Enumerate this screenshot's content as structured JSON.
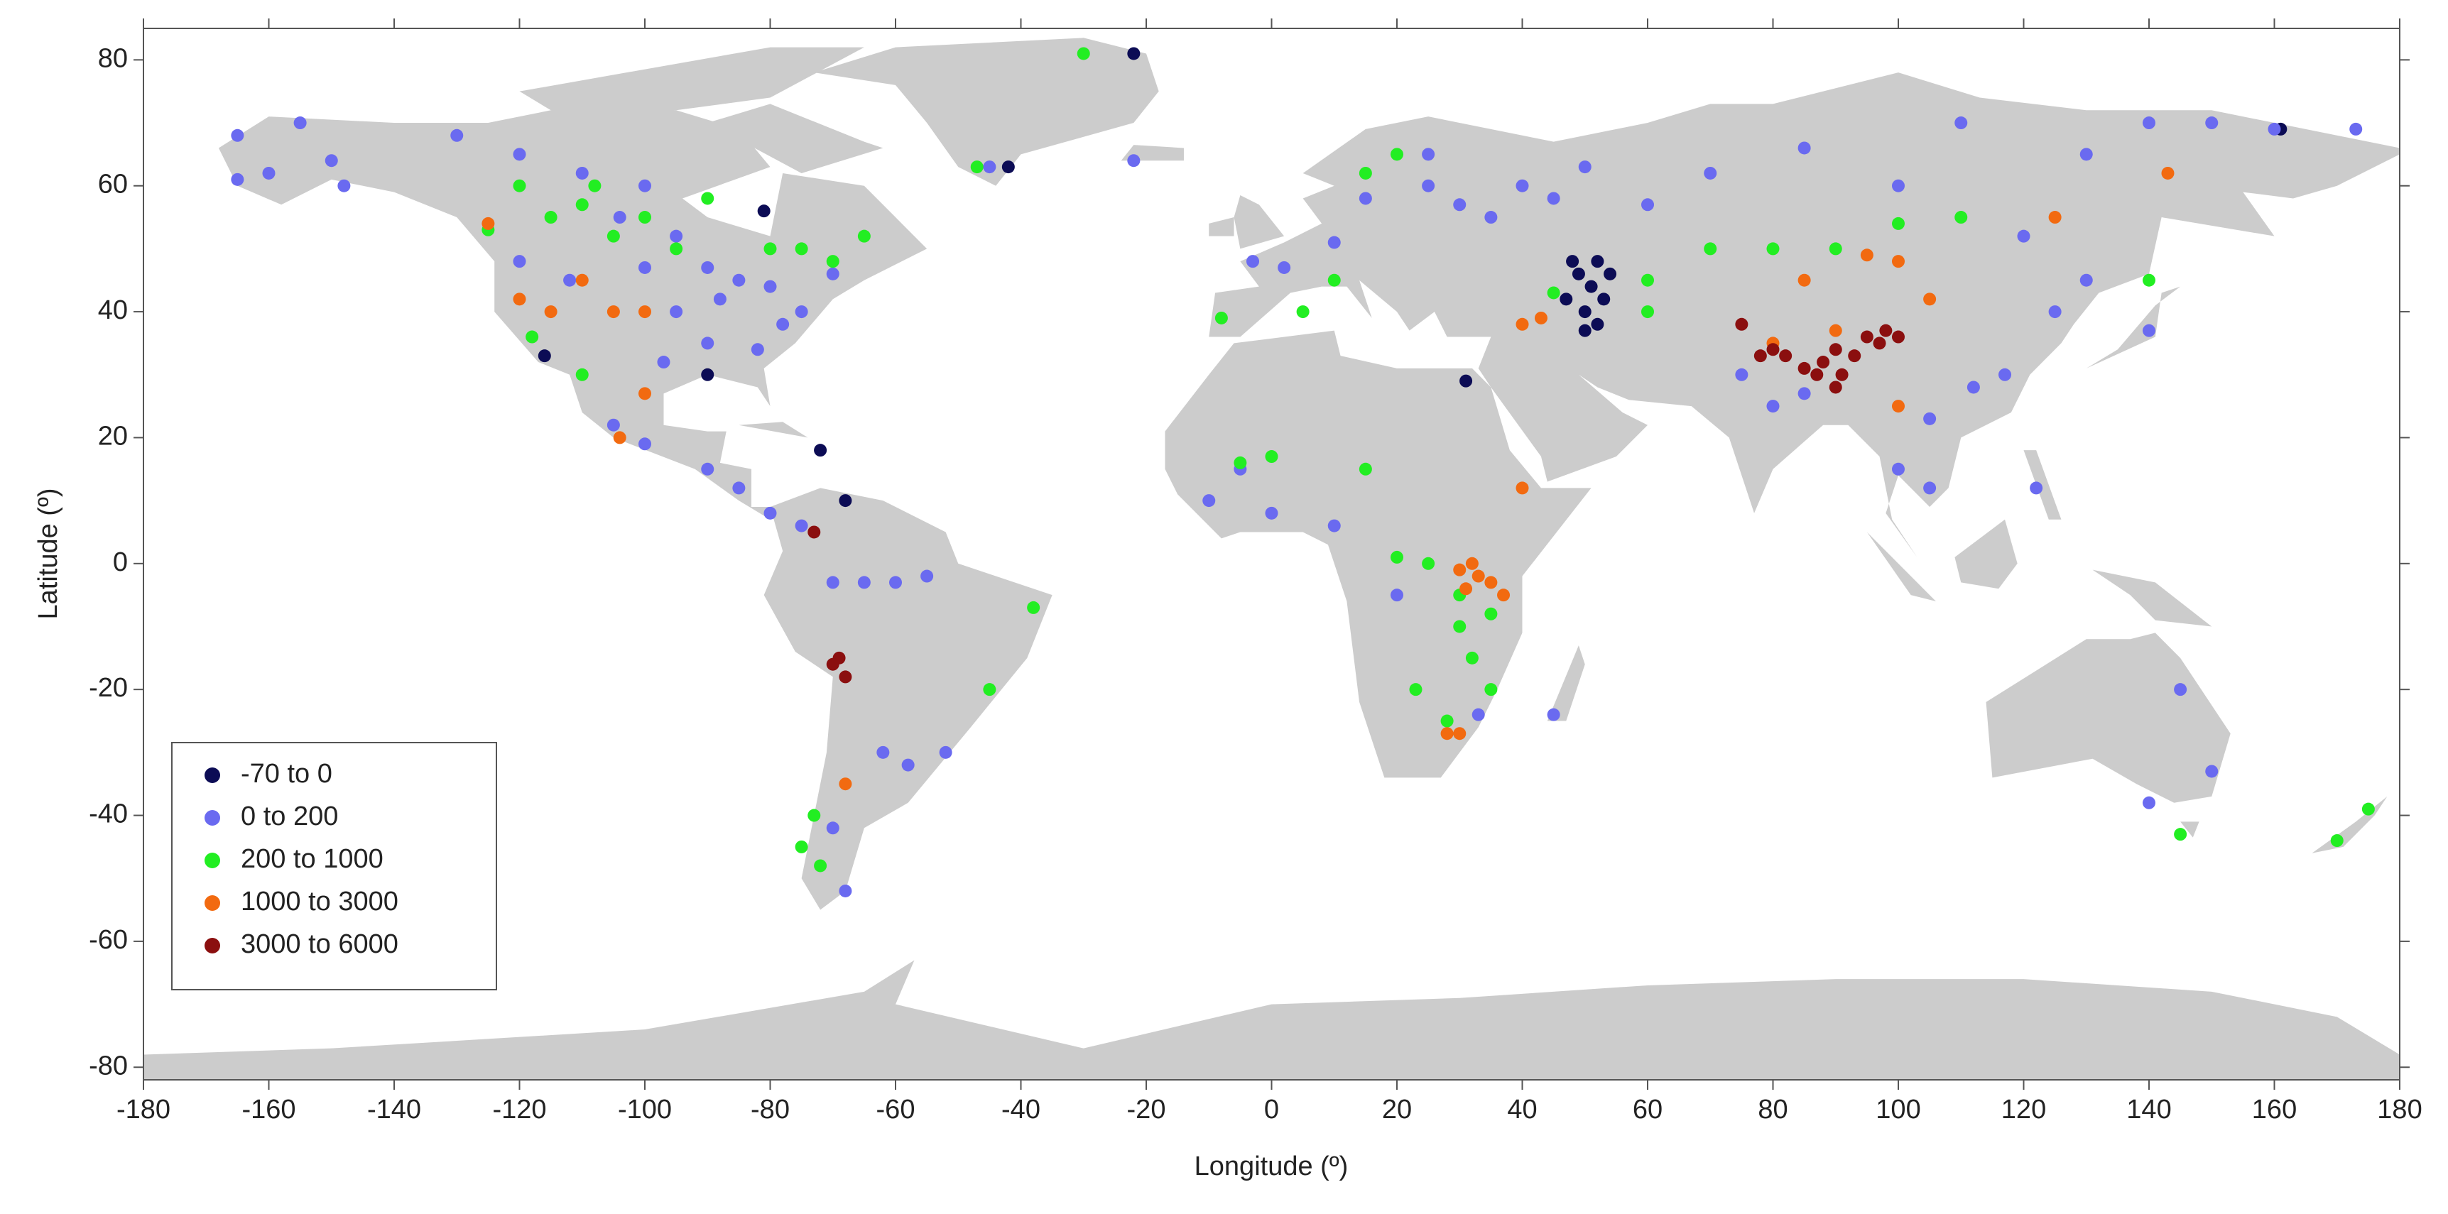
{
  "chart_data": {
    "type": "scatter",
    "xlabel": "Longitude (º)",
    "ylabel": "Latitude (º)",
    "xlim": [
      -180,
      180
    ],
    "ylim": [
      -82,
      85
    ],
    "xticks": [
      -180,
      -160,
      -140,
      -120,
      -100,
      -80,
      -60,
      -40,
      -20,
      0,
      20,
      40,
      60,
      80,
      100,
      120,
      140,
      160,
      180
    ],
    "yticks": [
      -80,
      -60,
      -40,
      -20,
      0,
      20,
      40,
      60,
      80
    ],
    "legend": "lower left",
    "series": [
      {
        "name": "-70 to 0",
        "color": "#0c0c55",
        "x": [
          47,
          49,
          50,
          51,
          52,
          53,
          54,
          50,
          48,
          52,
          -22,
          -42,
          -81,
          -90,
          -116,
          -72,
          -68,
          31,
          161
        ],
        "y": [
          42,
          46,
          40,
          44,
          38,
          42,
          46,
          37,
          48,
          48,
          81,
          63,
          56,
          30,
          33,
          18,
          10,
          29,
          69
        ]
      },
      {
        "name": "0 to 200",
        "color": "#6a6af0",
        "x": [
          -165,
          -160,
          -155,
          -150,
          -165,
          -148,
          -130,
          -120,
          -110,
          -100,
          -95,
          -90,
          -85,
          -80,
          -75,
          -70,
          -88,
          -95,
          -100,
          -104,
          -82,
          -90,
          -97,
          -78,
          -120,
          -112,
          -105,
          -100,
          -90,
          -85,
          -80,
          -65,
          -60,
          -55,
          -70,
          -58,
          -62,
          -52,
          -70,
          -68,
          -75,
          -3,
          2,
          10,
          15,
          25,
          30,
          35,
          40,
          45,
          50,
          60,
          25,
          70,
          85,
          100,
          110,
          130,
          140,
          150,
          160,
          120,
          130,
          125,
          117,
          112,
          105,
          100,
          105,
          80,
          75,
          85,
          122,
          140,
          145,
          150,
          140,
          -10,
          0,
          10,
          20,
          -5,
          45,
          33,
          -45,
          -22,
          173
        ],
        "y": [
          68,
          62,
          70,
          64,
          61,
          60,
          68,
          65,
          62,
          60,
          52,
          47,
          45,
          44,
          40,
          46,
          42,
          40,
          47,
          55,
          34,
          35,
          32,
          38,
          48,
          45,
          22,
          19,
          15,
          12,
          8,
          -3,
          -3,
          -2,
          -3,
          -32,
          -30,
          -30,
          -42,
          -52,
          6,
          48,
          47,
          51,
          58,
          60,
          57,
          55,
          60,
          58,
          63,
          57,
          65,
          62,
          66,
          60,
          70,
          65,
          70,
          70,
          69,
          52,
          45,
          40,
          30,
          28,
          23,
          15,
          12,
          25,
          30,
          27,
          12,
          37,
          -20,
          -33,
          -38,
          10,
          8,
          6,
          -5,
          15,
          -24,
          -24,
          63,
          64,
          69
        ]
      },
      {
        "name": "200 to 1000",
        "color": "#22ee22",
        "x": [
          -120,
          -110,
          -100,
          -95,
          -105,
          -115,
          -75,
          -70,
          -80,
          -65,
          -125,
          -108,
          -90,
          -118,
          -110,
          -75,
          -73,
          -72,
          -45,
          -38,
          15,
          20,
          10,
          5,
          -8,
          0,
          -5,
          15,
          20,
          25,
          30,
          32,
          35,
          28,
          30,
          35,
          23,
          60,
          70,
          80,
          90,
          100,
          110,
          140,
          145,
          170,
          175,
          -30,
          -47,
          60,
          45
        ],
        "y": [
          60,
          57,
          55,
          50,
          52,
          55,
          50,
          48,
          50,
          52,
          53,
          60,
          58,
          36,
          30,
          -45,
          -40,
          -48,
          -20,
          -7,
          62,
          65,
          45,
          40,
          39,
          17,
          16,
          15,
          1,
          0,
          -5,
          -15,
          -20,
          -25,
          -10,
          -8,
          -20,
          45,
          50,
          50,
          50,
          54,
          55,
          45,
          -43,
          -44,
          -39,
          81,
          63,
          40,
          43
        ]
      },
      {
        "name": "1000 to 3000",
        "color": "#f26a10",
        "x": [
          -120,
          -115,
          -110,
          -105,
          -100,
          -125,
          -104,
          -100,
          30,
          32,
          33,
          35,
          31,
          37,
          40,
          28,
          30,
          40,
          43,
          85,
          95,
          100,
          105,
          90,
          100,
          125,
          143,
          80,
          -68
        ],
        "y": [
          42,
          40,
          45,
          40,
          40,
          54,
          20,
          27,
          -1,
          0,
          -2,
          -3,
          -4,
          -5,
          12,
          -27,
          -27,
          38,
          39,
          45,
          49,
          48,
          42,
          37,
          25,
          55,
          62,
          35,
          -35
        ]
      },
      {
        "name": "3000 to 6000",
        "color": "#8b0f0f",
        "x": [
          -69,
          -70,
          -68,
          -73,
          75,
          80,
          82,
          85,
          87,
          88,
          90,
          91,
          90,
          93,
          95,
          98,
          100,
          97,
          78
        ],
        "y": [
          -15,
          -16,
          -18,
          5,
          38,
          34,
          33,
          31,
          30,
          32,
          34,
          30,
          28,
          33,
          36,
          37,
          36,
          35,
          33
        ]
      }
    ]
  }
}
